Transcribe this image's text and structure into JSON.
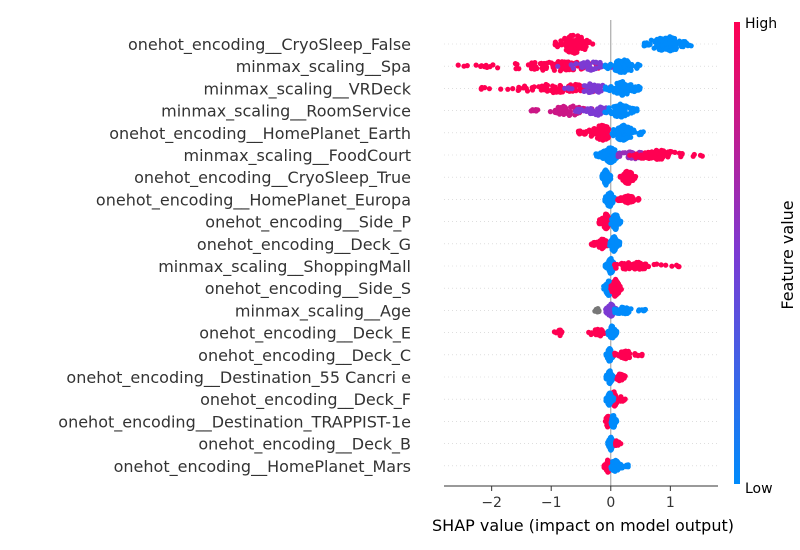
{
  "chart_data": {
    "type": "scatter",
    "subtype": "shap-beeswarm",
    "title": "",
    "xlabel": "SHAP value (impact on model output)",
    "xlim": [
      -2.8,
      1.8
    ],
    "xticks": [
      -2,
      -1,
      0,
      1
    ],
    "xtick_labels": [
      "−2",
      "−1",
      "0",
      "1"
    ],
    "grid": false,
    "colorbar": {
      "label": "Feature value",
      "high_label": "High",
      "low_label": "Low",
      "low_color": "#008bfb",
      "mid_color": "#7c3ad3",
      "high_color": "#ff0052"
    },
    "features": [
      {
        "name": "onehot_encoding__CryoSleep_False",
        "clusters": [
          {
            "min": -0.95,
            "max": -0.3,
            "center": -0.62,
            "spread": 10,
            "value": 1.0,
            "count": 120
          },
          {
            "min": 0.55,
            "max": 1.38,
            "center": 0.95,
            "spread": 8,
            "value": 0.0,
            "count": 110
          }
        ]
      },
      {
        "name": "minmax_scaling__Spa",
        "clusters": [
          {
            "min": -2.6,
            "max": -0.1,
            "center": -0.9,
            "spread": 5,
            "value": 1.0,
            "count": 90
          },
          {
            "min": -0.9,
            "max": 0.05,
            "center": -0.3,
            "spread": 5,
            "value": 0.5,
            "count": 40
          },
          {
            "min": -0.1,
            "max": 0.5,
            "center": 0.2,
            "spread": 7,
            "value": 0.0,
            "count": 90
          }
        ]
      },
      {
        "name": "minmax_scaling__VRDeck",
        "clusters": [
          {
            "min": -2.2,
            "max": -0.1,
            "center": -0.8,
            "spread": 5,
            "value": 1.0,
            "count": 80
          },
          {
            "min": -0.8,
            "max": 0.05,
            "center": -0.3,
            "spread": 5,
            "value": 0.5,
            "count": 40
          },
          {
            "min": -0.1,
            "max": 0.5,
            "center": 0.2,
            "spread": 7,
            "value": 0.0,
            "count": 90
          }
        ]
      },
      {
        "name": "minmax_scaling__RoomService",
        "clusters": [
          {
            "min": -1.35,
            "max": -0.3,
            "center": -0.7,
            "spread": 5,
            "value": 0.8,
            "count": 60
          },
          {
            "min": -0.6,
            "max": 0.05,
            "center": -0.25,
            "spread": 5,
            "value": 0.5,
            "count": 40
          },
          {
            "min": -0.1,
            "max": 0.45,
            "center": 0.15,
            "spread": 7,
            "value": 0.0,
            "count": 90
          }
        ]
      },
      {
        "name": "onehot_encoding__HomePlanet_Earth",
        "clusters": [
          {
            "min": -0.55,
            "max": -0.02,
            "center": -0.15,
            "spread": 8,
            "value": 1.0,
            "count": 100
          },
          {
            "min": 0.02,
            "max": 0.55,
            "center": 0.2,
            "spread": 8,
            "value": 0.0,
            "count": 100
          }
        ]
      },
      {
        "name": "minmax_scaling__FoodCourt",
        "clusters": [
          {
            "min": -0.25,
            "max": 0.15,
            "center": 0.0,
            "spread": 8,
            "value": 0.0,
            "count": 110
          },
          {
            "min": 0.1,
            "max": 0.9,
            "center": 0.4,
            "spread": 4,
            "value": 0.6,
            "count": 50
          },
          {
            "min": 0.3,
            "max": 1.6,
            "center": 0.8,
            "spread": 5,
            "value": 1.0,
            "count": 70
          }
        ]
      },
      {
        "name": "onehot_encoding__CryoSleep_True",
        "clusters": [
          {
            "min": -0.15,
            "max": 0.0,
            "center": -0.08,
            "spread": 8,
            "value": 0.0,
            "count": 80
          },
          {
            "min": 0.15,
            "max": 0.42,
            "center": 0.28,
            "spread": 7,
            "value": 1.0,
            "count": 70
          }
        ]
      },
      {
        "name": "onehot_encoding__HomePlanet_Europa",
        "clusters": [
          {
            "min": -0.1,
            "max": 0.08,
            "center": -0.02,
            "spread": 8,
            "value": 0.0,
            "count": 90
          },
          {
            "min": 0.1,
            "max": 0.5,
            "center": 0.3,
            "spread": 4,
            "value": 1.0,
            "count": 50
          }
        ]
      },
      {
        "name": "onehot_encoding__Side_P",
        "clusters": [
          {
            "min": -0.2,
            "max": 0.0,
            "center": -0.08,
            "spread": 8,
            "value": 1.0,
            "count": 80
          },
          {
            "min": 0.0,
            "max": 0.18,
            "center": 0.08,
            "spread": 8,
            "value": 0.0,
            "count": 80
          }
        ]
      },
      {
        "name": "onehot_encoding__Deck_G",
        "clusters": [
          {
            "min": -0.35,
            "max": -0.02,
            "center": -0.15,
            "spread": 5,
            "value": 1.0,
            "count": 50
          },
          {
            "min": -0.02,
            "max": 0.15,
            "center": 0.05,
            "spread": 8,
            "value": 0.0,
            "count": 90
          }
        ]
      },
      {
        "name": "minmax_scaling__ShoppingMall",
        "clusters": [
          {
            "min": -0.1,
            "max": 0.05,
            "center": 0.0,
            "spread": 8,
            "value": 0.0,
            "count": 100
          },
          {
            "min": 0.05,
            "max": 1.2,
            "center": 0.4,
            "spread": 4,
            "value": 1.0,
            "count": 70
          }
        ]
      },
      {
        "name": "onehot_encoding__Side_S",
        "clusters": [
          {
            "min": -0.12,
            "max": 0.05,
            "center": -0.03,
            "spread": 8,
            "value": 0.0,
            "count": 90
          },
          {
            "min": 0.0,
            "max": 0.18,
            "center": 0.08,
            "spread": 9,
            "value": 1.0,
            "count": 90
          }
        ]
      },
      {
        "name": "minmax_scaling__Age",
        "clusters": [
          {
            "min": -0.3,
            "max": -0.15,
            "center": -0.22,
            "spread": 2,
            "value": -1,
            "count": 8
          },
          {
            "min": -0.1,
            "max": 0.1,
            "center": 0.0,
            "spread": 7,
            "value": 0.5,
            "count": 90
          },
          {
            "min": 0.05,
            "max": 0.6,
            "center": 0.2,
            "spread": 4,
            "value": 0.0,
            "count": 60
          }
        ]
      },
      {
        "name": "onehot_encoding__Deck_E",
        "clusters": [
          {
            "min": -0.95,
            "max": -0.75,
            "center": -0.85,
            "spread": 3,
            "value": 1.0,
            "count": 12
          },
          {
            "min": -0.45,
            "max": -0.05,
            "center": -0.2,
            "spread": 4,
            "value": 1.0,
            "count": 30
          },
          {
            "min": -0.05,
            "max": 0.1,
            "center": 0.02,
            "spread": 7,
            "value": 0.0,
            "count": 80
          }
        ]
      },
      {
        "name": "onehot_encoding__Deck_C",
        "clusters": [
          {
            "min": -0.08,
            "max": 0.05,
            "center": -0.02,
            "spread": 7,
            "value": 0.0,
            "count": 80
          },
          {
            "min": 0.05,
            "max": 0.55,
            "center": 0.25,
            "spread": 4,
            "value": 1.0,
            "count": 40
          }
        ]
      },
      {
        "name": "onehot_encoding__Destination_55 Cancri e",
        "clusters": [
          {
            "min": -0.08,
            "max": 0.05,
            "center": -0.02,
            "spread": 7,
            "value": 0.0,
            "count": 80
          },
          {
            "min": 0.05,
            "max": 0.28,
            "center": 0.15,
            "spread": 4,
            "value": 1.0,
            "count": 30
          }
        ]
      },
      {
        "name": "onehot_encoding__Deck_F",
        "clusters": [
          {
            "min": -0.05,
            "max": 0.12,
            "center": 0.05,
            "spread": 8,
            "value": 1.0,
            "count": 50
          },
          {
            "min": -0.08,
            "max": 0.05,
            "center": -0.02,
            "spread": 7,
            "value": 0.0,
            "count": 70
          },
          {
            "min": 0.1,
            "max": 0.25,
            "center": 0.18,
            "spread": 3,
            "value": 1.0,
            "count": 12
          }
        ]
      },
      {
        "name": "onehot_encoding__Destination_TRAPPIST-1e",
        "clusters": [
          {
            "min": -0.1,
            "max": 0.0,
            "center": -0.05,
            "spread": 6,
            "value": 1.0,
            "count": 50
          },
          {
            "min": 0.0,
            "max": 0.1,
            "center": 0.04,
            "spread": 7,
            "value": 0.0,
            "count": 70
          }
        ]
      },
      {
        "name": "onehot_encoding__Deck_B",
        "clusters": [
          {
            "min": -0.05,
            "max": 0.05,
            "center": 0.0,
            "spread": 7,
            "value": 0.0,
            "count": 80
          },
          {
            "min": 0.05,
            "max": 0.18,
            "center": 0.1,
            "spread": 3,
            "value": 1.0,
            "count": 15
          }
        ]
      },
      {
        "name": "onehot_encoding__HomePlanet_Mars",
        "clusters": [
          {
            "min": -0.12,
            "max": 0.0,
            "center": -0.05,
            "spread": 7,
            "value": 1.0,
            "count": 50
          },
          {
            "min": 0.0,
            "max": 0.3,
            "center": 0.08,
            "spread": 6,
            "value": 0.0,
            "count": 70
          }
        ]
      }
    ]
  }
}
